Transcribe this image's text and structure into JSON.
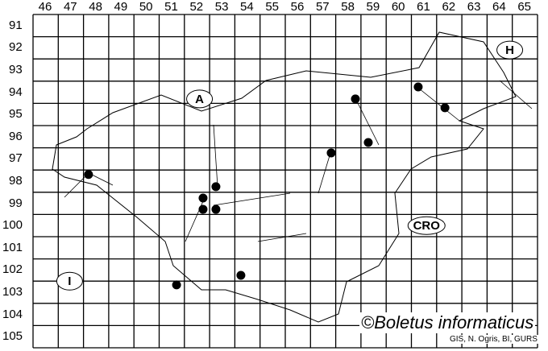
{
  "grid": {
    "columns": [
      "46",
      "47",
      "48",
      "49",
      "50",
      "51",
      "52",
      "53",
      "54",
      "55",
      "56",
      "57",
      "58",
      "59",
      "60",
      "61",
      "62",
      "63",
      "64",
      "65"
    ],
    "rows": [
      "91",
      "92",
      "93",
      "94",
      "95",
      "96",
      "97",
      "98",
      "99",
      "100",
      "101",
      "102",
      "103",
      "104",
      "105"
    ]
  },
  "country_labels": [
    {
      "text": "A",
      "col": 52.6,
      "row": 94.8
    },
    {
      "text": "H",
      "col": 64.9,
      "row": 92.6
    },
    {
      "text": "CRO",
      "col": 61.6,
      "row": 100.5
    },
    {
      "text": "I",
      "col": 47.45,
      "row": 103.0
    }
  ],
  "records": [
    {
      "col": 48.2,
      "row": 98.2
    },
    {
      "col": 53.25,
      "row": 98.75
    },
    {
      "col": 52.74,
      "row": 99.26
    },
    {
      "col": 52.74,
      "row": 99.77
    },
    {
      "col": 53.25,
      "row": 99.77
    },
    {
      "col": 51.69,
      "row": 103.17
    },
    {
      "col": 54.24,
      "row": 102.74
    },
    {
      "col": 57.82,
      "row": 97.23
    },
    {
      "col": 59.29,
      "row": 96.76
    },
    {
      "col": 58.78,
      "row": 94.8
    },
    {
      "col": 61.27,
      "row": 94.26
    },
    {
      "col": 62.33,
      "row": 95.2
    }
  ],
  "credit": "©Boletus informaticus",
  "source": "GIS, N. Ogris, BI, GURS",
  "colors": {
    "dot": "#000000",
    "grid": "#000000",
    "background": "#ffffff"
  }
}
